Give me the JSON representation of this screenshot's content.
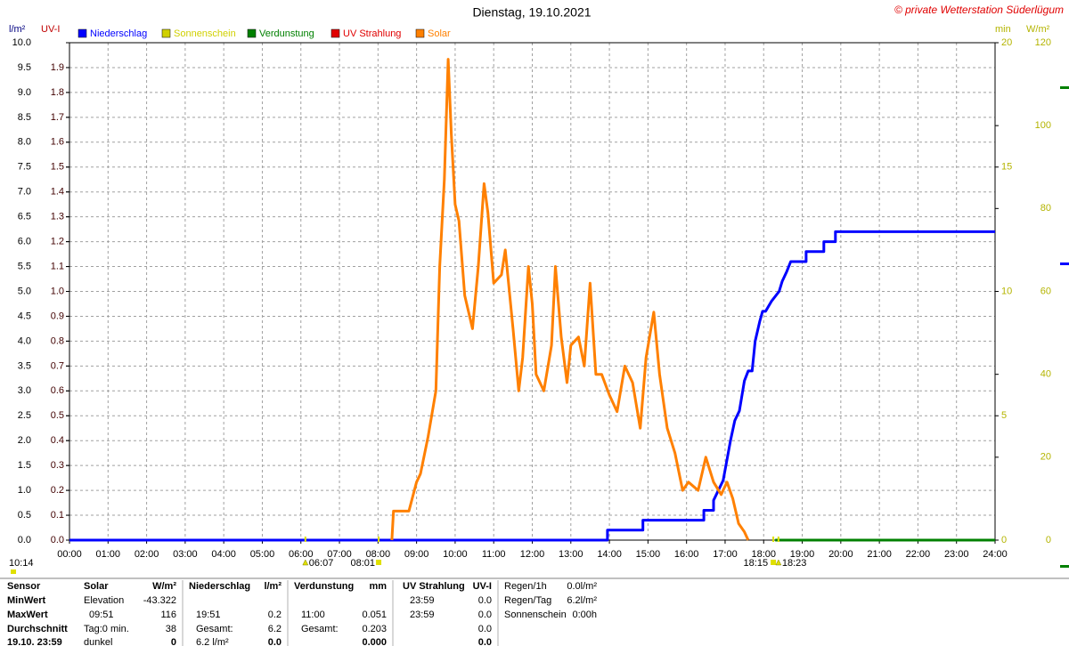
{
  "chart_data": {
    "type": "line",
    "title": "Dienstag, 19.10.2021",
    "copyright": "© private Wetterstation Süderlügum",
    "update_time": "10:14",
    "sun_events": [
      "06:07",
      "08:01",
      "18:15",
      "18:23"
    ],
    "xlim": [
      0,
      24
    ],
    "xticks": [
      {
        "value": 0,
        "label": "00:00"
      },
      {
        "value": 1,
        "label": "01:00"
      },
      {
        "value": 2,
        "label": "02:00"
      },
      {
        "value": 3,
        "label": "03:00"
      },
      {
        "value": 4,
        "label": "04:00"
      },
      {
        "value": 5,
        "label": "05:00"
      },
      {
        "value": 6,
        "label": "06:00"
      },
      {
        "value": 7,
        "label": "07:00"
      },
      {
        "value": 8,
        "label": "08:00"
      },
      {
        "value": 9,
        "label": "09:00"
      },
      {
        "value": 10,
        "label": "10:00"
      },
      {
        "value": 11,
        "label": "11:00"
      },
      {
        "value": 12,
        "label": "12:00"
      },
      {
        "value": 13,
        "label": "13:00"
      },
      {
        "value": 14,
        "label": "14:00"
      },
      {
        "value": 15,
        "label": "15:00"
      },
      {
        "value": 16,
        "label": "16:00"
      },
      {
        "value": 17,
        "label": "17:00"
      },
      {
        "value": 18,
        "label": "18:00"
      },
      {
        "value": 19,
        "label": "19:00"
      },
      {
        "value": 20,
        "label": "20:00"
      },
      {
        "value": 21,
        "label": "21:00"
      },
      {
        "value": 22,
        "label": "22:00"
      },
      {
        "value": 23,
        "label": "23:00"
      },
      {
        "value": 24,
        "label": "24:00"
      }
    ],
    "grid": true,
    "axes": [
      {
        "label": "l/m²",
        "title_color": "#000080",
        "color": "#000000",
        "lim": [
          0,
          10
        ],
        "ticks": [
          {
            "value": 0,
            "label": "0.0"
          },
          0.5,
          {
            "value": 1,
            "label": "1.0"
          },
          1.5,
          {
            "value": 2,
            "label": "2.0"
          },
          2.5,
          {
            "value": 3,
            "label": "3.0"
          },
          3.5,
          {
            "value": 4,
            "label": "4.0"
          },
          4.5,
          {
            "value": 5,
            "label": "5.0"
          },
          5.5,
          {
            "value": 6,
            "label": "6.0"
          },
          6.5,
          {
            "value": 7,
            "label": "7.0"
          },
          7.5,
          {
            "value": 8,
            "label": "8.0"
          },
          8.5,
          {
            "value": 9,
            "label": "9.0"
          },
          9.5,
          {
            "value": 10,
            "label": "10.0"
          }
        ]
      },
      {
        "label": "UV-I",
        "title_color": "#c00000",
        "color": "#400000",
        "lim": [
          0,
          2
        ],
        "ticks": [
          {
            "value": 0,
            "label": "0.0"
          },
          0.1,
          0.2,
          0.3,
          0.4,
          0.5,
          0.6,
          0.7,
          0.8,
          0.9,
          {
            "value": 1,
            "label": "1.0"
          },
          1.1,
          1.2,
          1.3,
          1.4,
          1.5,
          1.6,
          1.7,
          1.8,
          1.9
        ]
      },
      {
        "label": "min",
        "title_color": "#b4b400",
        "color": "#b4b400",
        "lim": [
          0,
          20
        ],
        "ticks": [
          0,
          5,
          10,
          15,
          20
        ]
      },
      {
        "label": "W/m²",
        "title_color": "#b4b400",
        "color": "#b4b400",
        "lim": [
          0,
          120
        ],
        "ticks": [
          0,
          20,
          40,
          60,
          80,
          100,
          120
        ]
      }
    ],
    "series": [
      {
        "name": "Niederschlag",
        "color": "#0000ff",
        "axis": 0,
        "x": [
          0,
          13.95,
          13.95,
          14.87,
          14.87,
          16.45,
          16.45,
          16.7,
          16.7,
          16.95,
          17.14,
          17.25,
          17.37,
          17.5,
          17.6,
          17.7,
          17.78,
          17.9,
          17.97,
          18.05,
          18.2,
          18.4,
          18.48,
          18.6,
          18.7,
          19.1,
          19.1,
          19.56,
          19.56,
          19.86,
          19.86,
          24
        ],
        "values": [
          0,
          0,
          0.2,
          0.2,
          0.4,
          0.4,
          0.6,
          0.6,
          0.8,
          1.2,
          2.0,
          2.4,
          2.6,
          3.2,
          3.4,
          3.4,
          4.0,
          4.4,
          4.6,
          4.6,
          4.8,
          5.0,
          5.2,
          5.4,
          5.6,
          5.6,
          5.8,
          5.8,
          6.0,
          6.0,
          6.2,
          6.2
        ]
      },
      {
        "name": "Sonnenschein",
        "color": "#d0d000",
        "axis": 2,
        "x": [],
        "values": []
      },
      {
        "name": "Verdunstung",
        "color": "#008000",
        "axis": 0,
        "x": [
          18.3,
          24
        ],
        "values": [
          0,
          0
        ]
      },
      {
        "name": "UV Strahlung",
        "color": "#e00000",
        "axis": 1,
        "x": [],
        "values": []
      },
      {
        "name": "Solar",
        "color": "#ff8000",
        "axis": 3,
        "x": [
          8.36,
          8.4,
          8.8,
          9.0,
          9.1,
          9.3,
          9.5,
          9.6,
          9.72,
          9.82,
          9.9,
          10.0,
          10.1,
          10.25,
          10.45,
          10.6,
          10.75,
          10.85,
          11.0,
          11.2,
          11.3,
          11.5,
          11.65,
          11.75,
          11.9,
          12.0,
          12.1,
          12.3,
          12.5,
          12.6,
          12.75,
          12.9,
          13.0,
          13.2,
          13.35,
          13.5,
          13.65,
          13.8,
          14.0,
          14.2,
          14.4,
          14.6,
          14.8,
          14.95,
          15.15,
          15.3,
          15.5,
          15.7,
          15.9,
          16.05,
          16.3,
          16.5,
          16.7,
          16.9,
          17.05,
          17.2,
          17.35,
          17.5,
          17.6
        ],
        "values": [
          0,
          7,
          7,
          14,
          16,
          25,
          36,
          66,
          87,
          116,
          98,
          81,
          77,
          59,
          51,
          66,
          86,
          79,
          62,
          64,
          70,
          51,
          36,
          44,
          66,
          57,
          40,
          36,
          47,
          66,
          49,
          38,
          47,
          49,
          42,
          62,
          40,
          40,
          35,
          31,
          42,
          38,
          27,
          44,
          55,
          40,
          27,
          21,
          12,
          14,
          12,
          20,
          14,
          11,
          14,
          10,
          4,
          2,
          0
        ]
      }
    ]
  },
  "table": {
    "rows": [
      [
        "Sensor",
        "Solar",
        "W/m²",
        "Niederschlag",
        "l/m²",
        "Verdunstung",
        "mm",
        "UV Strahlung",
        "UV-I",
        "Regen/1h",
        "0.0l/m²"
      ],
      [
        "MinWert",
        "Elevation",
        "-43.322",
        null,
        null,
        null,
        null,
        "23:59",
        "0.0",
        "Regen/Tag",
        "6.2l/m²"
      ],
      [
        "MaxWert",
        "09:51",
        "116",
        "19:51",
        "0.2",
        "11:00",
        "0.051",
        "23:59",
        "0.0",
        "Sonnenschein",
        "0:00h"
      ],
      [
        "Durchschnitt",
        "Tag:0 min.",
        "38",
        "Gesamt:",
        "6.2",
        "Gesamt:",
        "0.203",
        null,
        "0.0",
        null,
        null
      ],
      [
        "19.10. 23:59",
        "dunkel",
        "0",
        "6.2 l/m²",
        "0.0",
        null,
        "0.000",
        null,
        "0.0",
        null,
        null
      ]
    ]
  }
}
